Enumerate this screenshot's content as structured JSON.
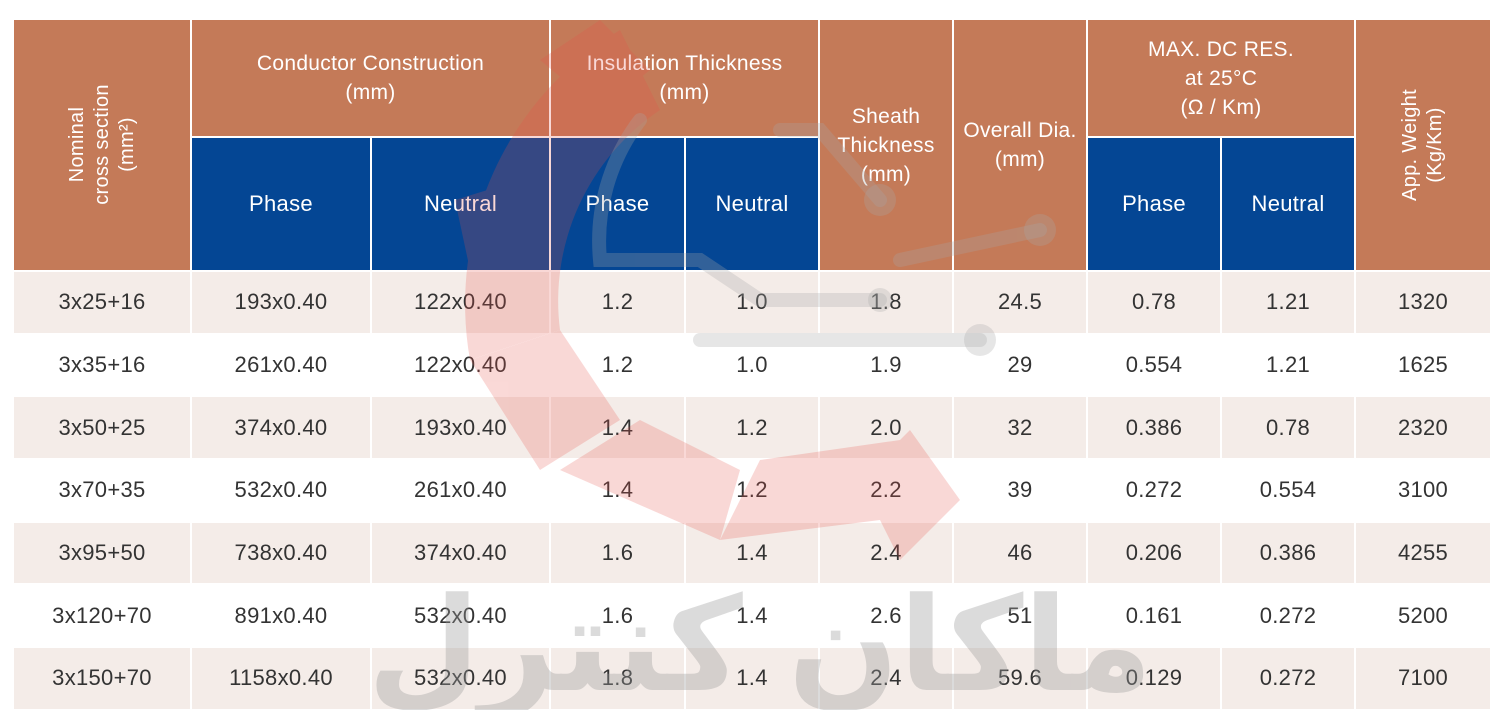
{
  "table": {
    "headers": {
      "nominal_line1": "Nominal",
      "nominal_line2": "cross section",
      "nominal_line3": "(mm²)",
      "conductor_line1": "Conductor Construction",
      "conductor_line2": "(mm)",
      "insulation_line1": "Insulation Thickness",
      "insulation_line2": "(mm)",
      "sheath_line1": "Sheath",
      "sheath_line2": "Thickness",
      "sheath_line3": "(mm)",
      "overall_line1": "Overall Dia.",
      "overall_line2": "(mm)",
      "maxdc_line1": "MAX. DC RES.",
      "maxdc_line2": "at 25°C",
      "maxdc_line3": "(Ω / Km)",
      "weight_line1": "App. Weight",
      "weight_line2": "(Kg/Km)",
      "phase": "Phase",
      "neutral": "Neutral"
    },
    "rows": [
      [
        "3x25+16",
        "193x0.40",
        "122x0.40",
        "1.2",
        "1.0",
        "1.8",
        "24.5",
        "0.78",
        "1.21",
        "1320"
      ],
      [
        "3x35+16",
        "261x0.40",
        "122x0.40",
        "1.2",
        "1.0",
        "1.9",
        "29",
        "0.554",
        "1.21",
        "1625"
      ],
      [
        "3x50+25",
        "374x0.40",
        "193x0.40",
        "1.4",
        "1.2",
        "2.0",
        "32",
        "0.386",
        "0.78",
        "2320"
      ],
      [
        "3x70+35",
        "532x0.40",
        "261x0.40",
        "1.4",
        "1.2",
        "2.2",
        "39",
        "0.272",
        "0.554",
        "3100"
      ],
      [
        "3x95+50",
        "738x0.40",
        "374x0.40",
        "1.6",
        "1.4",
        "2.4",
        "46",
        "0.206",
        "0.386",
        "4255"
      ],
      [
        "3x120+70",
        "891x0.40",
        "532x0.40",
        "1.6",
        "1.4",
        "2.6",
        "51",
        "0.161",
        "0.272",
        "5200"
      ],
      [
        "3x150+70",
        "1158x0.40",
        "532x0.40",
        "1.8",
        "1.4",
        "2.4",
        "59.6",
        "0.129",
        "0.272",
        "7100"
      ]
    ]
  },
  "watermark": {
    "text": "ماکان کنترل",
    "colors": {
      "gear": "#e8504a",
      "text": "#9a9a9a",
      "circuit": "#a8a8a8"
    }
  },
  "colors": {
    "header_brown": "#c47a58",
    "header_blue": "#044694",
    "row_tint": "#f4ece8",
    "text": "#333333"
  }
}
